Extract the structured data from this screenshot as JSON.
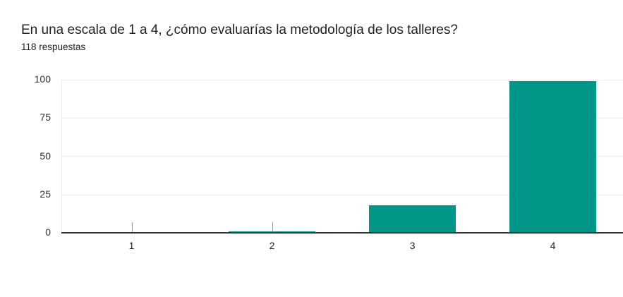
{
  "header": {
    "title": "En una escala de 1 a 4, ¿cómo evaluarías la metodología de los talleres?",
    "subtitle": "118 respuestas"
  },
  "colors": {
    "bar": "#009688",
    "grid": "#ebebeb",
    "axis": "#333333"
  },
  "chart_data": {
    "type": "bar",
    "title": "En una escala de 1 a 4, ¿cómo evaluarías la metodología de los talleres?",
    "subtitle": "118 respuestas",
    "categories": [
      "1",
      "2",
      "3",
      "4"
    ],
    "values": [
      0,
      1,
      18,
      99
    ],
    "xlabel": "",
    "ylabel": "",
    "ylim": [
      0,
      100
    ],
    "yticks": [
      "0",
      "25",
      "50",
      "75",
      "100"
    ],
    "grid": true,
    "legend": null
  }
}
